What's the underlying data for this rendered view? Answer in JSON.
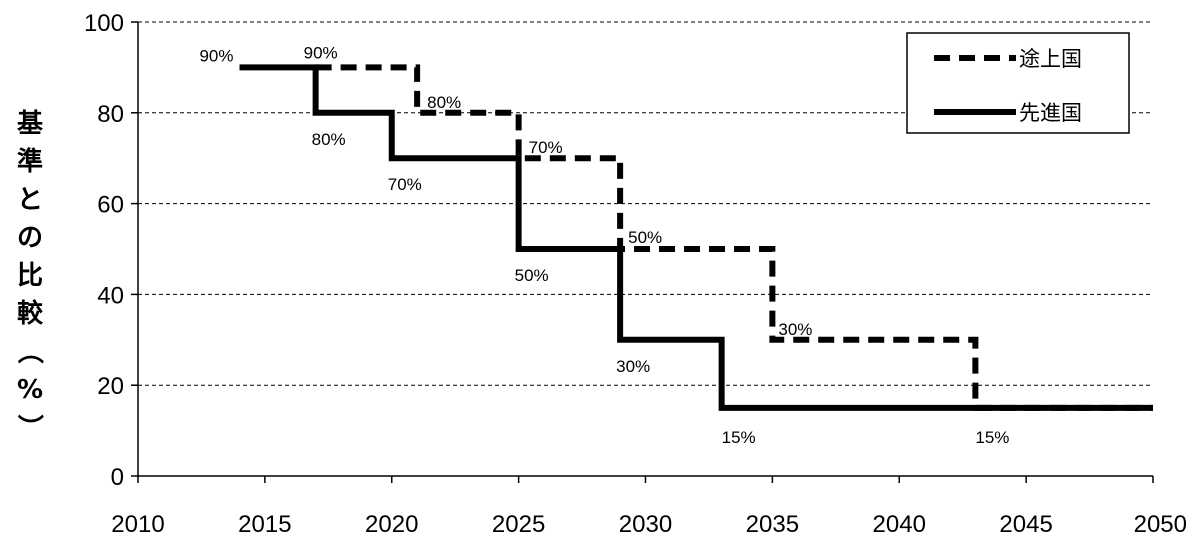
{
  "chart_data": {
    "type": "line",
    "title": "",
    "xlabel": "",
    "ylabel": "基準との比較（%）",
    "xlim": [
      2010,
      2050
    ],
    "ylim": [
      0,
      100
    ],
    "x_ticks": [
      "2010",
      "2015",
      "2020",
      "2025",
      "2030",
      "2035",
      "2040",
      "2045",
      "2050"
    ],
    "y_ticks": [
      "0",
      "20",
      "40",
      "60",
      "80",
      "100"
    ],
    "grid": "horizontal dashed",
    "legend_position": "top-right",
    "step_style": "post",
    "series": [
      {
        "name": "途上国",
        "style": "dashed",
        "color": "#000000",
        "x": [
          2017,
          2021,
          2025,
          2029,
          2035,
          2043,
          2050
        ],
        "y": [
          90,
          80,
          70,
          50,
          30,
          15,
          15
        ]
      },
      {
        "name": "先進国",
        "style": "solid",
        "color": "#000000",
        "x": [
          2014,
          2017,
          2020,
          2025,
          2029,
          2033,
          2050
        ],
        "y": [
          90,
          80,
          70,
          50,
          30,
          15,
          15
        ]
      }
    ],
    "annotations": [
      {
        "text": "90%",
        "x": 2014,
        "y": 90
      },
      {
        "text": "90%",
        "x": 2017,
        "y": 90
      },
      {
        "text": "80%",
        "x": 2021,
        "y": 80
      },
      {
        "text": "80%",
        "x": 2017,
        "y": 80
      },
      {
        "text": "70%",
        "x": 2025,
        "y": 70
      },
      {
        "text": "70%",
        "x": 2020,
        "y": 70
      },
      {
        "text": "50%",
        "x": 2029,
        "y": 50
      },
      {
        "text": "50%",
        "x": 2025,
        "y": 50
      },
      {
        "text": "30%",
        "x": 2035,
        "y": 30
      },
      {
        "text": "30%",
        "x": 2029,
        "y": 30
      },
      {
        "text": "15%",
        "x": 2033,
        "y": 15
      },
      {
        "text": "15%",
        "x": 2043,
        "y": 15
      }
    ]
  }
}
